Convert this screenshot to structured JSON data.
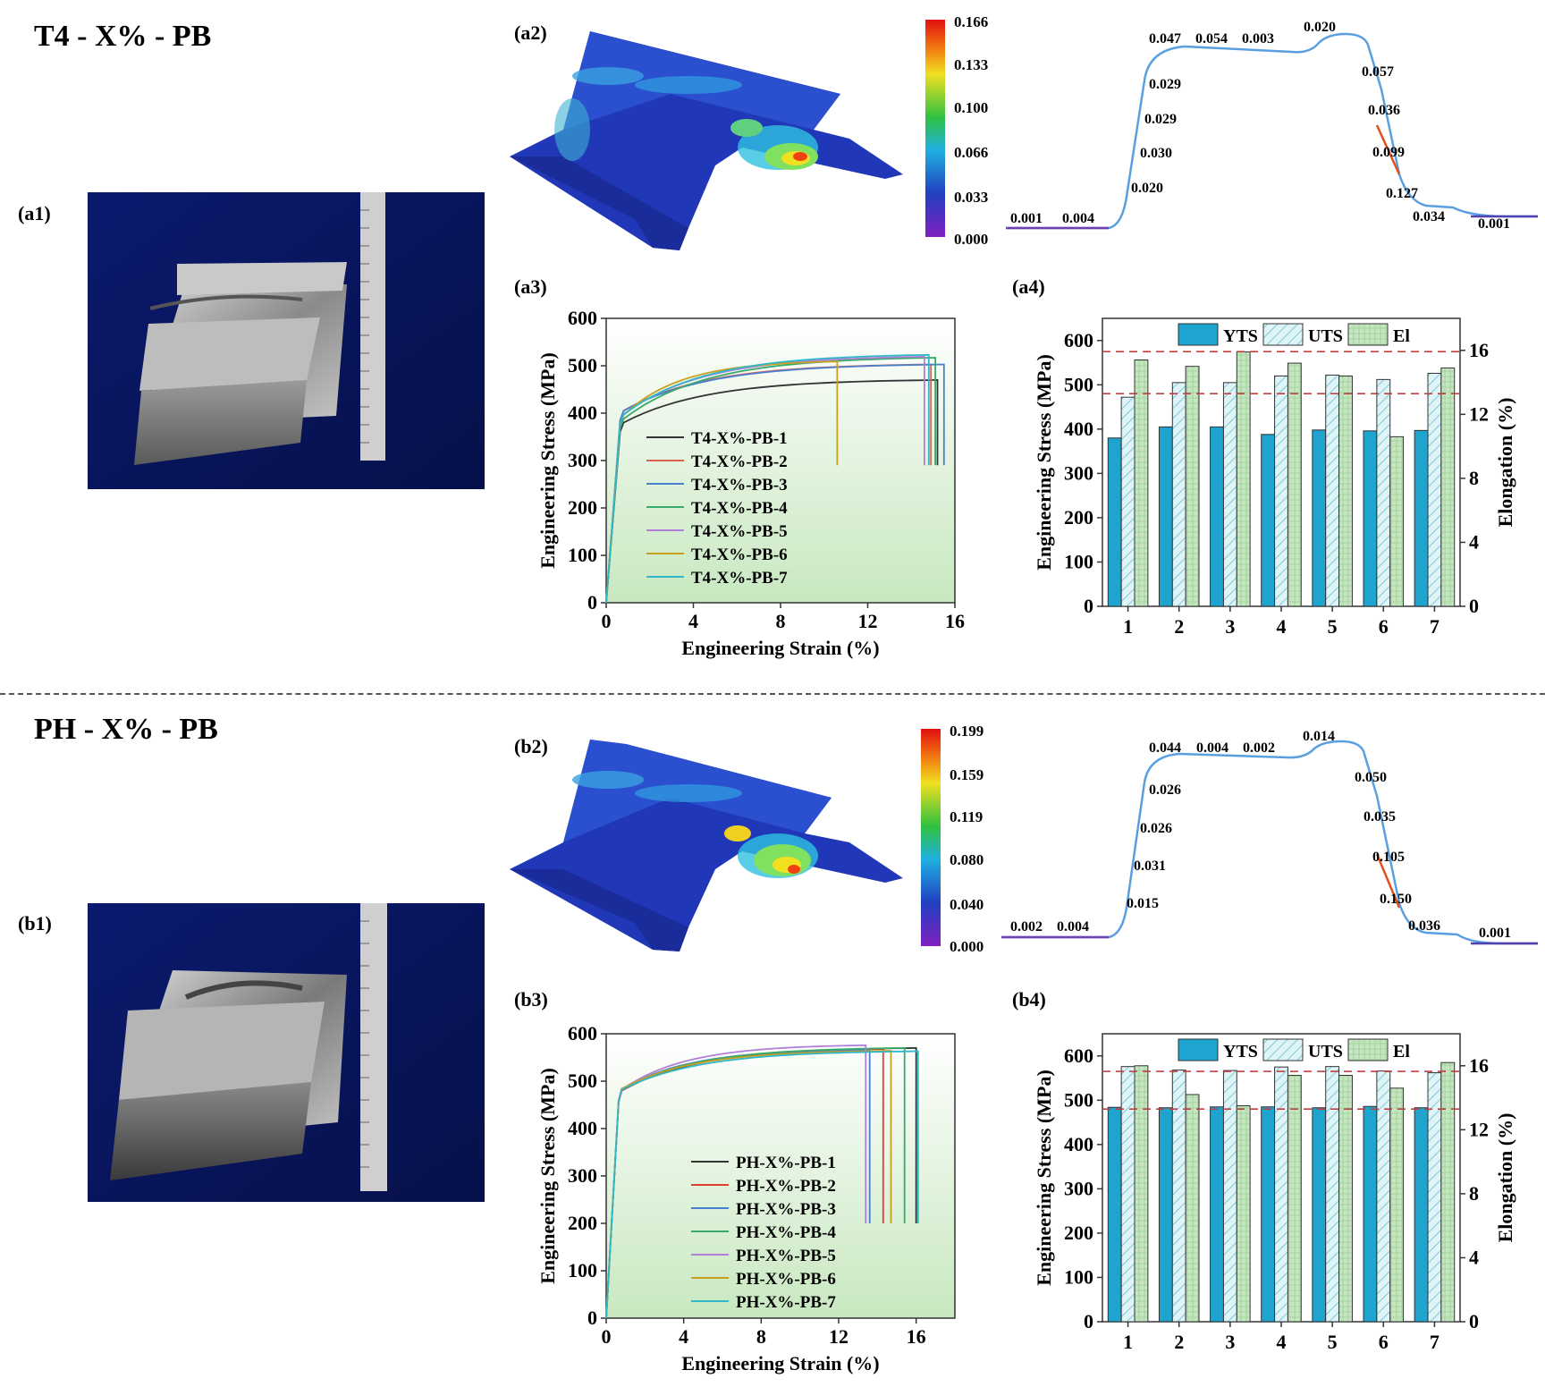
{
  "sections": [
    {
      "title": "T4 - X% - PB",
      "photo_label": "(a1)",
      "contour_label": "(a2)",
      "colorbar_ticks": [
        "0.166",
        "0.133",
        "0.100",
        "0.066",
        "0.033",
        "0.000"
      ],
      "profile_values": [
        "0.001",
        "0.004",
        "0.020",
        "0.030",
        "0.029",
        "0.029",
        "0.047",
        "0.054",
        "0.003",
        "0.020",
        "0.057",
        "0.036",
        "0.099",
        "0.127",
        "0.034",
        "0.001"
      ],
      "stress_label": "(a3)",
      "bar_label": "(a4)"
    },
    {
      "title": "PH - X% - PB",
      "photo_label": "(b1)",
      "contour_label": "(b2)",
      "colorbar_ticks": [
        "0.199",
        "0.159",
        "0.119",
        "0.080",
        "0.040",
        "0.000"
      ],
      "profile_values": [
        "0.002",
        "0.004",
        "0.015",
        "0.031",
        "0.026",
        "0.026",
        "0.044",
        "0.004",
        "0.002",
        "0.014",
        "0.050",
        "0.035",
        "0.105",
        "0.150",
        "0.036",
        "0.001"
      ],
      "stress_label": "(b3)",
      "bar_label": "(b4)"
    }
  ],
  "chart_data": [
    {
      "id": "a3",
      "type": "line",
      "xlabel": "Engineering Strain (%)",
      "ylabel": "Engineering Stress (MPa)",
      "xlim": [
        0,
        16
      ],
      "ylim": [
        0,
        600
      ],
      "xticks": [
        "0",
        "4",
        "8",
        "12",
        "16"
      ],
      "yticks": [
        "0",
        "100",
        "200",
        "300",
        "400",
        "500",
        "600"
      ],
      "legend_position": "bottom-left",
      "series": [
        {
          "name": "T4-X%-PB-1",
          "color": "#333333",
          "yield": 380,
          "peak": 472,
          "fracture": 15.2
        },
        {
          "name": "T4-X%-PB-2",
          "color": "#e06050",
          "yield": 405,
          "peak": 505,
          "fracture": 14.9
        },
        {
          "name": "T4-X%-PB-3",
          "color": "#4a7fd0",
          "yield": 405,
          "peak": 505,
          "fracture": 15.5
        },
        {
          "name": "T4-X%-PB-4",
          "color": "#3aaa6a",
          "yield": 388,
          "peak": 520,
          "fracture": 15.1
        },
        {
          "name": "T4-X%-PB-5",
          "color": "#b080d8",
          "yield": 398,
          "peak": 522,
          "fracture": 14.6
        },
        {
          "name": "T4-X%-PB-6",
          "color": "#c8a020",
          "yield": 396,
          "peak": 512,
          "fracture": 10.6
        },
        {
          "name": "T4-X%-PB-7",
          "color": "#30b8c8",
          "yield": 397,
          "peak": 526,
          "fracture": 14.8
        }
      ]
    },
    {
      "id": "a4",
      "type": "bar",
      "categories": [
        "1",
        "2",
        "3",
        "4",
        "5",
        "6",
        "7"
      ],
      "ylabel": "Engineering Stress (MPa)",
      "y2label": "Elongation (%)",
      "ylim": [
        0,
        650
      ],
      "y2lim": [
        0,
        18
      ],
      "yticks": [
        "0",
        "100",
        "200",
        "300",
        "400",
        "500",
        "600"
      ],
      "y2ticks": [
        "0",
        "4",
        "8",
        "12",
        "16"
      ],
      "legend_position": "top",
      "series": [
        {
          "name": "YTS",
          "axis": "left",
          "color": "#1fa3cf",
          "values": [
            380,
            405,
            405,
            388,
            398,
            396,
            397
          ]
        },
        {
          "name": "UTS",
          "axis": "left",
          "color": "#d8f2f4",
          "values": [
            472,
            505,
            505,
            520,
            522,
            512,
            526
          ]
        },
        {
          "name": "El",
          "axis": "right",
          "color": "#c6e6c2",
          "values": [
            15.4,
            15.0,
            15.9,
            15.2,
            14.4,
            10.6,
            14.9
          ]
        }
      ],
      "reference_lines": [
        480,
        575
      ]
    },
    {
      "id": "b3",
      "type": "line",
      "xlabel": "Engineering Strain (%)",
      "ylabel": "Engineering Stress (MPa)",
      "xlim": [
        0,
        18
      ],
      "ylim": [
        0,
        600
      ],
      "xticks": [
        "0",
        "4",
        "8",
        "12",
        "16"
      ],
      "yticks": [
        "0",
        "100",
        "200",
        "300",
        "400",
        "500",
        "600"
      ],
      "legend_position": "bottom-right",
      "series": [
        {
          "name": "PH-X%-PB-1",
          "color": "#333333",
          "yield": 480,
          "peak": 572,
          "fracture": 16.0
        },
        {
          "name": "PH-X%-PB-2",
          "color": "#e04030",
          "yield": 480,
          "peak": 570,
          "fracture": 14.3
        },
        {
          "name": "PH-X%-PB-3",
          "color": "#4a7fd0",
          "yield": 482,
          "peak": 568,
          "fracture": 13.6
        },
        {
          "name": "PH-X%-PB-4",
          "color": "#3aaa6a",
          "yield": 483,
          "peak": 572,
          "fracture": 15.4
        },
        {
          "name": "PH-X%-PB-5",
          "color": "#b080d8",
          "yield": 482,
          "peak": 578,
          "fracture": 13.4
        },
        {
          "name": "PH-X%-PB-6",
          "color": "#c8a020",
          "yield": 484,
          "peak": 566,
          "fracture": 14.7
        },
        {
          "name": "PH-X%-PB-7",
          "color": "#30b8c8",
          "yield": 482,
          "peak": 565,
          "fracture": 16.1
        }
      ]
    },
    {
      "id": "b4",
      "type": "bar",
      "categories": [
        "1",
        "2",
        "3",
        "4",
        "5",
        "6",
        "7"
      ],
      "ylabel": "Engineering Stress (MPa)",
      "y2label": "Elongation (%)",
      "ylim": [
        0,
        650
      ],
      "y2lim": [
        0,
        18
      ],
      "yticks": [
        "0",
        "100",
        "200",
        "300",
        "400",
        "500",
        "600"
      ],
      "y2ticks": [
        "0",
        "4",
        "8",
        "12",
        "16"
      ],
      "legend_position": "top",
      "series": [
        {
          "name": "YTS",
          "axis": "left",
          "color": "#1fa3cf",
          "values": [
            484,
            483,
            485,
            485,
            483,
            486,
            483
          ]
        },
        {
          "name": "UTS",
          "axis": "left",
          "color": "#d8f2f4",
          "values": [
            576,
            568,
            567,
            575,
            576,
            566,
            562
          ]
        },
        {
          "name": "El",
          "axis": "right",
          "color": "#c6e6c2",
          "values": [
            16.0,
            14.2,
            13.5,
            15.4,
            15.4,
            14.6,
            16.2
          ]
        }
      ],
      "reference_lines": [
        480,
        565
      ]
    }
  ]
}
